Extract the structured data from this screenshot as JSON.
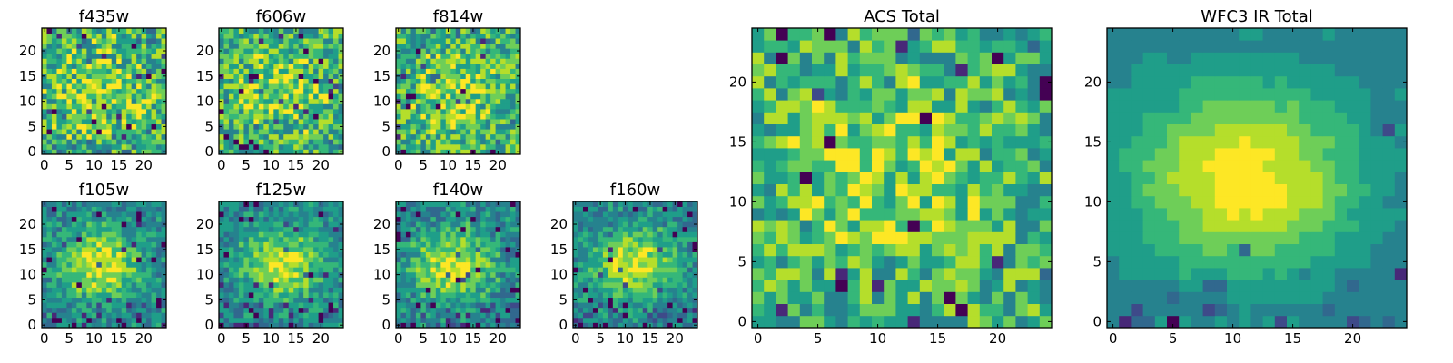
{
  "colors": {
    "colormap": [
      "#440154",
      "#482878",
      "#3e4a89",
      "#31688e",
      "#26828e",
      "#1f9e89",
      "#35b779",
      "#6ece58",
      "#b5de2b",
      "#fde725"
    ],
    "frame": "#000000",
    "background": "#ffffff"
  },
  "chart_data": [
    {
      "type": "heatmap",
      "title": "f435w",
      "shape": [
        25,
        25
      ],
      "xlim": [
        0,
        24
      ],
      "ylim": [
        0,
        24
      ],
      "xticks": [
        "0",
        "5",
        "10",
        "15",
        "20"
      ],
      "yticks": [
        "0",
        "5",
        "10",
        "15",
        "20"
      ],
      "pattern": "noise",
      "peak_center": [
        11,
        12
      ],
      "noise_level": 0.55,
      "seed": 11
    },
    {
      "type": "heatmap",
      "title": "f606w",
      "shape": [
        25,
        25
      ],
      "xlim": [
        0,
        24
      ],
      "ylim": [
        0,
        24
      ],
      "xticks": [
        "0",
        "5",
        "10",
        "15",
        "20"
      ],
      "yticks": [
        "0",
        "5",
        "10",
        "15",
        "20"
      ],
      "pattern": "noise",
      "peak_center": [
        11,
        12
      ],
      "noise_level": 0.5,
      "seed": 23
    },
    {
      "type": "heatmap",
      "title": "f814w",
      "shape": [
        25,
        25
      ],
      "xlim": [
        0,
        24
      ],
      "ylim": [
        0,
        24
      ],
      "xticks": [
        "0",
        "5",
        "10",
        "15",
        "20"
      ],
      "yticks": [
        "0",
        "5",
        "10",
        "15",
        "20"
      ],
      "pattern": "noise",
      "peak_center": [
        11,
        12
      ],
      "noise_level": 0.5,
      "seed": 37
    },
    {
      "type": "heatmap",
      "title": "f105w",
      "shape": [
        25,
        25
      ],
      "xlim": [
        0,
        24
      ],
      "ylim": [
        0,
        24
      ],
      "xticks": [
        "0",
        "5",
        "10",
        "15",
        "20"
      ],
      "yticks": [
        "0",
        "5",
        "10",
        "15",
        "20"
      ],
      "pattern": "blob",
      "peak_center": [
        11,
        12
      ],
      "noise_level": 0.3,
      "seed": 41
    },
    {
      "type": "heatmap",
      "title": "f125w",
      "shape": [
        25,
        25
      ],
      "xlim": [
        0,
        24
      ],
      "ylim": [
        0,
        24
      ],
      "xticks": [
        "0",
        "5",
        "10",
        "15",
        "20"
      ],
      "yticks": [
        "0",
        "5",
        "10",
        "15",
        "20"
      ],
      "pattern": "blob",
      "peak_center": [
        12,
        12
      ],
      "noise_level": 0.3,
      "seed": 53
    },
    {
      "type": "heatmap",
      "title": "f140w",
      "shape": [
        25,
        25
      ],
      "xlim": [
        0,
        24
      ],
      "ylim": [
        0,
        24
      ],
      "xticks": [
        "0",
        "5",
        "10",
        "15",
        "20"
      ],
      "yticks": [
        "0",
        "5",
        "10",
        "15",
        "20"
      ],
      "pattern": "blob",
      "peak_center": [
        11,
        12
      ],
      "noise_level": 0.32,
      "seed": 67
    },
    {
      "type": "heatmap",
      "title": "f160w",
      "shape": [
        25,
        25
      ],
      "xlim": [
        0,
        24
      ],
      "ylim": [
        0,
        24
      ],
      "xticks": [
        "0",
        "5",
        "10",
        "15",
        "20"
      ],
      "yticks": [
        "0",
        "5",
        "10",
        "15",
        "20"
      ],
      "pattern": "blob",
      "peak_center": [
        12,
        12
      ],
      "noise_level": 0.3,
      "seed": 79
    },
    {
      "type": "heatmap",
      "title": "ACS Total",
      "shape": [
        25,
        25
      ],
      "xlim": [
        0,
        24
      ],
      "ylim": [
        0,
        24
      ],
      "xticks": [
        "0",
        "5",
        "10",
        "15",
        "20"
      ],
      "yticks": [
        "0",
        "5",
        "10",
        "15",
        "20"
      ],
      "pattern": "noise",
      "peak_center": [
        11,
        12
      ],
      "noise_level": 0.45,
      "seed": 97
    },
    {
      "type": "heatmap",
      "title": "WFC3 IR Total",
      "shape": [
        25,
        25
      ],
      "xlim": [
        0,
        24
      ],
      "ylim": [
        0,
        24
      ],
      "xticks": [
        "0",
        "5",
        "10",
        "15",
        "20"
      ],
      "yticks": [
        "0",
        "5",
        "10",
        "15",
        "20"
      ],
      "pattern": "smooth",
      "peak_center": [
        11,
        12
      ],
      "noise_level": 0.12,
      "seed": 113
    }
  ]
}
